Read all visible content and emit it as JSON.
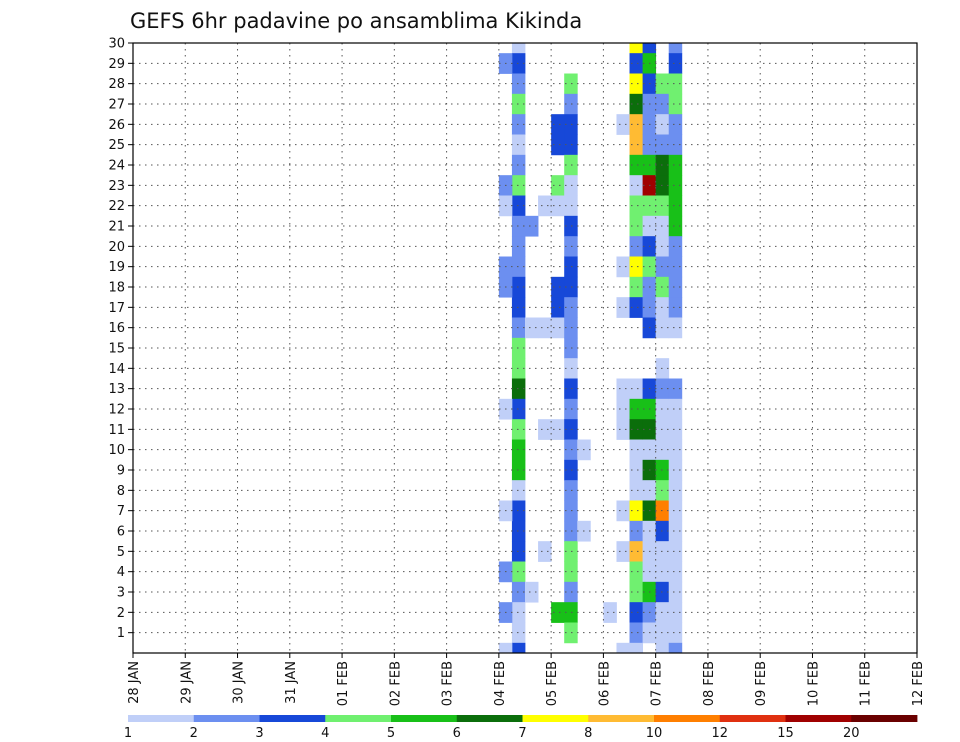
{
  "chart_data": {
    "type": "heatmap",
    "title": "GEFS 6hr padavine po ansamblima Kikinda",
    "xlabel": "",
    "ylabel": "",
    "x_ticks": [
      "28 JAN",
      "29 JAN",
      "30 JAN",
      "31 JAN",
      "01 FEB",
      "02 FEB",
      "03 FEB",
      "04 FEB",
      "05 FEB",
      "06 FEB",
      "07 FEB",
      "08 FEB",
      "09 FEB",
      "10 FEB",
      "11 FEB",
      "12 FEB"
    ],
    "y_ticks": [
      1,
      2,
      3,
      4,
      5,
      6,
      7,
      8,
      9,
      10,
      11,
      12,
      13,
      14,
      15,
      16,
      17,
      18,
      19,
      20,
      21,
      22,
      23,
      24,
      25,
      26,
      27,
      28,
      29,
      30
    ],
    "x_range_steps": [
      0,
      60
    ],
    "y_range": [
      0,
      30
    ],
    "grid": true,
    "colorbar": {
      "colors": [
        "#c0cff8",
        "#6c8ff0",
        "#1748d8",
        "#70f070",
        "#18c018",
        "#0b6e0b",
        "#ffff00",
        "#ffbb33",
        "#ff7f00",
        "#e03010",
        "#a00000",
        "#6a0000"
      ],
      "labels": [
        "1",
        "2",
        "3",
        "4",
        "5",
        "6",
        "7",
        "8",
        "10",
        "12",
        "15",
        "20"
      ]
    },
    "value_unit": "color class index 0-11 (bins 1,2,3,4,5,6,7,8,10,12,15,20)",
    "cells": [
      [
        29,
        30,
        0
      ],
      [
        29,
        29,
        2
      ],
      [
        29,
        28,
        1
      ],
      [
        29,
        27,
        3
      ],
      [
        29,
        26,
        1
      ],
      [
        29,
        25,
        0
      ],
      [
        29,
        24,
        1
      ],
      [
        29,
        23,
        3
      ],
      [
        29,
        22,
        2
      ],
      [
        29,
        21,
        1
      ],
      [
        29,
        20,
        1
      ],
      [
        29,
        19,
        1
      ],
      [
        29,
        18,
        2
      ],
      [
        29,
        17,
        2
      ],
      [
        29,
        16,
        1
      ],
      [
        29,
        15,
        3
      ],
      [
        29,
        14,
        3
      ],
      [
        29,
        13,
        5
      ],
      [
        29,
        12,
        2
      ],
      [
        29,
        11,
        3
      ],
      [
        29,
        10,
        4
      ],
      [
        29,
        9,
        4
      ],
      [
        29,
        8,
        0
      ],
      [
        29,
        7,
        2
      ],
      [
        29,
        6,
        2
      ],
      [
        29,
        5,
        2
      ],
      [
        29,
        4,
        3
      ],
      [
        29,
        3,
        1
      ],
      [
        29,
        2,
        0
      ],
      [
        29,
        1,
        0
      ],
      [
        29,
        0,
        2
      ],
      [
        28,
        29,
        1
      ],
      [
        28,
        23,
        1
      ],
      [
        28,
        22,
        0
      ],
      [
        28,
        19,
        1
      ],
      [
        28,
        18,
        1
      ],
      [
        28,
        12,
        0
      ],
      [
        28,
        7,
        0
      ],
      [
        28,
        4,
        1
      ],
      [
        28,
        2,
        1
      ],
      [
        28,
        0,
        0
      ],
      [
        30,
        21,
        1
      ],
      [
        30,
        16,
        0
      ],
      [
        30,
        3,
        0
      ],
      [
        31,
        22,
        0
      ],
      [
        31,
        16,
        0
      ],
      [
        31,
        11,
        0
      ],
      [
        31,
        5,
        0
      ],
      [
        32,
        26,
        2
      ],
      [
        32,
        25,
        2
      ],
      [
        32,
        23,
        3
      ],
      [
        32,
        22,
        0
      ],
      [
        32,
        18,
        2
      ],
      [
        32,
        17,
        2
      ],
      [
        32,
        16,
        0
      ],
      [
        32,
        11,
        0
      ],
      [
        32,
        2,
        4
      ],
      [
        33,
        28,
        3
      ],
      [
        33,
        27,
        1
      ],
      [
        33,
        26,
        2
      ],
      [
        33,
        25,
        2
      ],
      [
        33,
        24,
        3
      ],
      [
        33,
        23,
        0
      ],
      [
        33,
        22,
        0
      ],
      [
        33,
        21,
        2
      ],
      [
        33,
        20,
        1
      ],
      [
        33,
        19,
        2
      ],
      [
        33,
        18,
        2
      ],
      [
        33,
        17,
        1
      ],
      [
        33,
        16,
        1
      ],
      [
        33,
        15,
        1
      ],
      [
        33,
        14,
        0
      ],
      [
        33,
        13,
        2
      ],
      [
        33,
        12,
        1
      ],
      [
        33,
        11,
        2
      ],
      [
        33,
        10,
        1
      ],
      [
        33,
        9,
        2
      ],
      [
        33,
        8,
        1
      ],
      [
        33,
        7,
        1
      ],
      [
        33,
        6,
        1
      ],
      [
        33,
        5,
        3
      ],
      [
        33,
        4,
        3
      ],
      [
        33,
        3,
        1
      ],
      [
        33,
        2,
        4
      ],
      [
        33,
        1,
        3
      ],
      [
        34,
        10,
        0
      ],
      [
        34,
        6,
        0
      ],
      [
        36,
        2,
        0
      ],
      [
        37,
        26,
        0
      ],
      [
        37,
        19,
        0
      ],
      [
        37,
        17,
        0
      ],
      [
        37,
        13,
        0
      ],
      [
        37,
        12,
        0
      ],
      [
        37,
        11,
        0
      ],
      [
        37,
        7,
        0
      ],
      [
        37,
        5,
        0
      ],
      [
        37,
        0,
        0
      ],
      [
        38,
        30,
        6
      ],
      [
        38,
        29,
        2
      ],
      [
        38,
        28,
        6
      ],
      [
        38,
        27,
        5
      ],
      [
        38,
        26,
        7
      ],
      [
        38,
        25,
        7
      ],
      [
        38,
        24,
        4
      ],
      [
        38,
        23,
        0
      ],
      [
        38,
        22,
        3
      ],
      [
        38,
        21,
        3
      ],
      [
        38,
        20,
        1
      ],
      [
        38,
        19,
        6
      ],
      [
        38,
        18,
        3
      ],
      [
        38,
        17,
        2
      ],
      [
        38,
        13,
        0
      ],
      [
        38,
        12,
        4
      ],
      [
        38,
        11,
        5
      ],
      [
        38,
        10,
        0
      ],
      [
        38,
        9,
        0
      ],
      [
        38,
        8,
        0
      ],
      [
        38,
        7,
        6
      ],
      [
        38,
        6,
        1
      ],
      [
        38,
        5,
        7
      ],
      [
        38,
        4,
        3
      ],
      [
        38,
        3,
        3
      ],
      [
        38,
        2,
        2
      ],
      [
        38,
        1,
        1
      ],
      [
        38,
        0,
        0
      ],
      [
        39,
        30,
        2
      ],
      [
        39,
        29,
        4
      ],
      [
        39,
        28,
        2
      ],
      [
        39,
        27,
        1
      ],
      [
        39,
        26,
        1
      ],
      [
        39,
        25,
        1
      ],
      [
        39,
        24,
        4
      ],
      [
        39,
        23,
        10
      ],
      [
        39,
        22,
        3
      ],
      [
        39,
        21,
        0
      ],
      [
        39,
        20,
        2
      ],
      [
        39,
        19,
        3
      ],
      [
        39,
        18,
        1
      ],
      [
        39,
        17,
        1
      ],
      [
        39,
        16,
        2
      ],
      [
        39,
        13,
        2
      ],
      [
        39,
        12,
        4
      ],
      [
        39,
        11,
        5
      ],
      [
        39,
        10,
        0
      ],
      [
        39,
        9,
        5
      ],
      [
        39,
        8,
        0
      ],
      [
        39,
        7,
        5
      ],
      [
        39,
        6,
        0
      ],
      [
        39,
        5,
        0
      ],
      [
        39,
        4,
        0
      ],
      [
        39,
        3,
        4
      ],
      [
        39,
        2,
        1
      ],
      [
        39,
        1,
        0
      ],
      [
        40,
        28,
        3
      ],
      [
        40,
        27,
        1
      ],
      [
        40,
        26,
        0
      ],
      [
        40,
        25,
        1
      ],
      [
        40,
        24,
        5
      ],
      [
        40,
        23,
        5
      ],
      [
        40,
        22,
        3
      ],
      [
        40,
        21,
        0
      ],
      [
        40,
        20,
        0
      ],
      [
        40,
        19,
        1
      ],
      [
        40,
        18,
        3
      ],
      [
        40,
        17,
        0
      ],
      [
        40,
        16,
        0
      ],
      [
        40,
        14,
        0
      ],
      [
        40,
        13,
        1
      ],
      [
        40,
        12,
        0
      ],
      [
        40,
        11,
        0
      ],
      [
        40,
        10,
        0
      ],
      [
        40,
        9,
        4
      ],
      [
        40,
        8,
        3
      ],
      [
        40,
        7,
        8
      ],
      [
        40,
        6,
        2
      ],
      [
        40,
        5,
        0
      ],
      [
        40,
        4,
        0
      ],
      [
        40,
        3,
        2
      ],
      [
        40,
        2,
        0
      ],
      [
        40,
        1,
        0
      ],
      [
        40,
        0,
        0
      ],
      [
        41,
        30,
        1
      ],
      [
        41,
        29,
        2
      ],
      [
        41,
        28,
        3
      ],
      [
        41,
        27,
        3
      ],
      [
        41,
        26,
        1
      ],
      [
        41,
        25,
        1
      ],
      [
        41,
        24,
        4
      ],
      [
        41,
        23,
        4
      ],
      [
        41,
        22,
        4
      ],
      [
        41,
        21,
        4
      ],
      [
        41,
        20,
        1
      ],
      [
        41,
        19,
        1
      ],
      [
        41,
        18,
        1
      ],
      [
        41,
        17,
        1
      ],
      [
        41,
        16,
        0
      ],
      [
        41,
        13,
        1
      ],
      [
        41,
        12,
        0
      ],
      [
        41,
        11,
        0
      ],
      [
        41,
        10,
        0
      ],
      [
        41,
        9,
        0
      ],
      [
        41,
        8,
        0
      ],
      [
        41,
        7,
        0
      ],
      [
        41,
        6,
        0
      ],
      [
        41,
        5,
        0
      ],
      [
        41,
        4,
        0
      ],
      [
        41,
        3,
        0
      ],
      [
        41,
        2,
        0
      ],
      [
        41,
        1,
        0
      ],
      [
        41,
        0,
        1
      ]
    ],
    "legend": "bottom"
  }
}
